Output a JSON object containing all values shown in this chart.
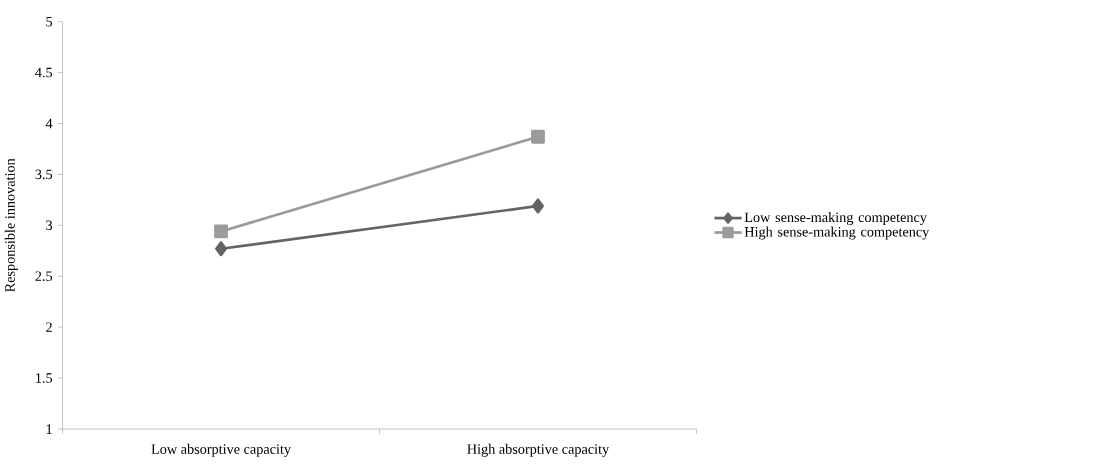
{
  "chart_data": {
    "type": "line",
    "ylabel": "Responsible innovation",
    "categories": [
      "Low absorptive capacity",
      "High absorptive capacity"
    ],
    "series": [
      {
        "name": "Low sense-making competency",
        "color": "#646464",
        "marker": "diamond",
        "values": [
          2.77,
          3.19
        ]
      },
      {
        "name": "High sense-making competency",
        "color": "#9b9b9b",
        "marker": "square",
        "values": [
          2.94,
          3.87
        ]
      }
    ],
    "ylim": [
      1,
      5
    ],
    "yticks": [
      1,
      1.5,
      2,
      2.5,
      3,
      3.5,
      4,
      4.5,
      5
    ],
    "grid": false,
    "legend": "right"
  }
}
